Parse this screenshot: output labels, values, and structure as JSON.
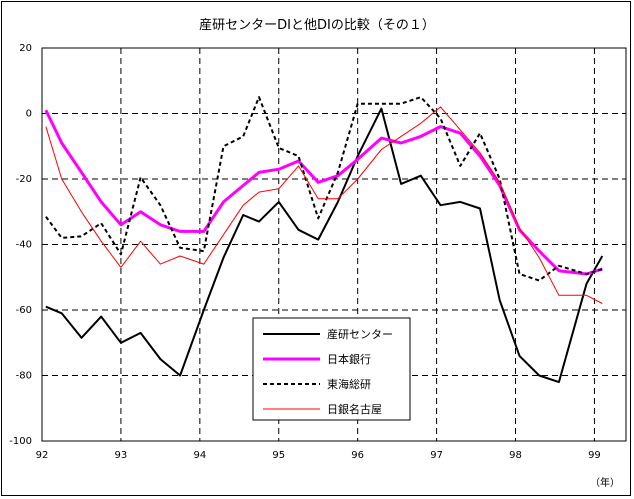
{
  "chart_data": {
    "type": "line",
    "title": "産研センターDIと他DIの比較（その１）",
    "xlabel": "（年）",
    "ylabel": "",
    "xlim": [
      92.0,
      99.4
    ],
    "ylim": [
      -100,
      20
    ],
    "x_ticks": [
      {
        "v": 92,
        "label": "92"
      },
      {
        "v": 93,
        "label": "93"
      },
      {
        "v": 94,
        "label": "94"
      },
      {
        "v": 95,
        "label": "95"
      },
      {
        "v": 96,
        "label": "96"
      },
      {
        "v": 97,
        "label": "97"
      },
      {
        "v": 98,
        "label": "98"
      },
      {
        "v": 99,
        "label": "99"
      }
    ],
    "y_ticks": [
      {
        "v": 20,
        "label": "20"
      },
      {
        "v": 0,
        "label": "0"
      },
      {
        "v": -20,
        "label": "-20"
      },
      {
        "v": -40,
        "label": "-40"
      },
      {
        "v": -60,
        "label": "-60"
      },
      {
        "v": -80,
        "label": "-80"
      },
      {
        "v": -100,
        "label": "-100"
      }
    ],
    "grid": true,
    "legend_position": "lower-center",
    "series": [
      {
        "name": "産研センター",
        "color": "#000000",
        "stroke_width": 2,
        "dash": "",
        "x": [
          92.05,
          92.25,
          92.5,
          92.75,
          93.0,
          93.25,
          93.5,
          93.75,
          94.05,
          94.3,
          94.55,
          94.75,
          95.0,
          95.25,
          95.5,
          95.75,
          96.0,
          96.3,
          96.55,
          96.8,
          97.05,
          97.3,
          97.55,
          97.8,
          98.05,
          98.3,
          98.55,
          98.9,
          99.1
        ],
        "y": [
          -59,
          -61,
          -68.5,
          -62,
          -70,
          -67,
          -75,
          -80,
          -60,
          -44,
          -31,
          -33,
          -27,
          -35.5,
          -38.5,
          -27,
          -13,
          1.5,
          -21.5,
          -19,
          -28,
          -27,
          -29,
          -57,
          -74,
          -80,
          -82,
          -52,
          -43.5
        ]
      },
      {
        "name": "日本銀行",
        "color": "#ff00ff",
        "stroke_width": 3,
        "dash": "",
        "x": [
          92.05,
          92.25,
          92.5,
          92.75,
          93.0,
          93.25,
          93.5,
          93.75,
          94.05,
          94.3,
          94.55,
          94.75,
          95.0,
          95.25,
          95.5,
          95.75,
          96.0,
          96.3,
          96.55,
          96.8,
          97.05,
          97.3,
          97.55,
          97.8,
          98.05,
          98.3,
          98.55,
          98.9,
          99.1
        ],
        "y": [
          1,
          -9,
          -18,
          -27,
          -34,
          -30,
          -34,
          -36,
          -36,
          -27,
          -22,
          -18,
          -17,
          -14.5,
          -21,
          -19,
          -14,
          -7.5,
          -9,
          -7,
          -4,
          -6,
          -13,
          -22,
          -35.5,
          -42,
          -48,
          -49,
          -47.5
        ]
      },
      {
        "name": "東海総研",
        "color": "#000000",
        "stroke_width": 2,
        "dash": "4,3",
        "x": [
          92.05,
          92.25,
          92.5,
          92.75,
          93.0,
          93.25,
          93.5,
          93.75,
          94.05,
          94.3,
          94.55,
          94.75,
          95.0,
          95.25,
          95.5,
          95.75,
          96.0,
          96.3,
          96.55,
          96.8,
          97.05,
          97.3,
          97.55,
          97.8,
          98.05,
          98.3,
          98.55,
          98.9,
          99.1
        ],
        "y": [
          -31.5,
          -38,
          -37.5,
          -33.5,
          -43,
          -19.5,
          -28,
          -41,
          -42,
          -10,
          -7,
          5,
          -10.5,
          -13,
          -32,
          -18,
          3,
          3,
          3,
          5,
          -1.5,
          -16,
          -6,
          -20,
          -49,
          -51,
          -46.5,
          -49,
          -47.5
        ]
      },
      {
        "name": "日銀名古屋",
        "color": "#ff0000",
        "stroke_width": 1,
        "dash": "",
        "x": [
          92.05,
          92.25,
          92.5,
          92.75,
          93.0,
          93.25,
          93.5,
          93.75,
          94.05,
          94.3,
          94.55,
          94.75,
          95.0,
          95.25,
          95.5,
          95.75,
          96.0,
          96.3,
          96.55,
          96.8,
          97.05,
          97.3,
          97.55,
          97.8,
          98.05,
          98.3,
          98.55,
          98.9,
          99.1
        ],
        "y": [
          -4,
          -20,
          -30,
          -39,
          -47,
          -39,
          -46,
          -43.5,
          -46,
          -37,
          -28,
          -24,
          -23,
          -16,
          -26,
          -26,
          -20,
          -11,
          -7,
          -3,
          2,
          -5,
          -12,
          -21,
          -35,
          -44,
          -55.5,
          -55.5,
          -58
        ]
      }
    ]
  }
}
